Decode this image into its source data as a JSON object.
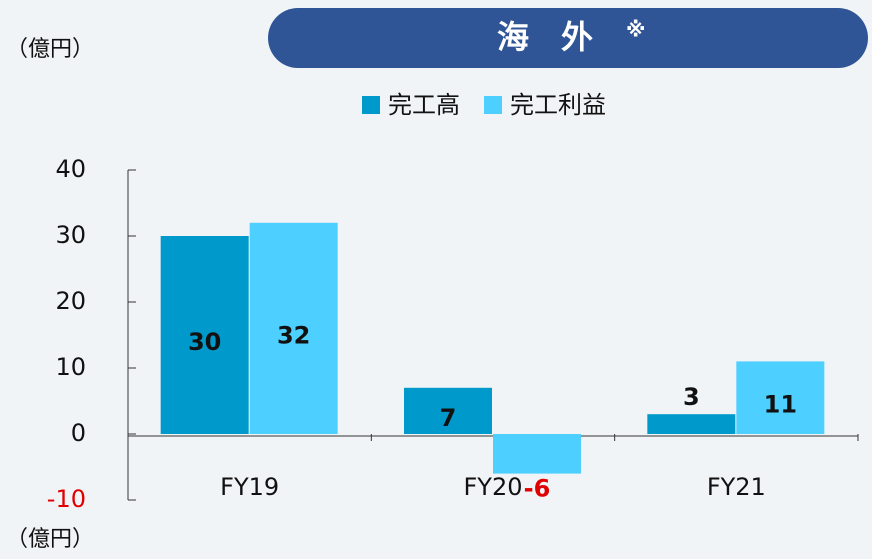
{
  "chart_data": {
    "type": "bar",
    "title": "海　外",
    "title_note": "※",
    "y_unit_top": "（億円）",
    "y_unit_bottom": "（億円）",
    "categories": [
      "FY19",
      "FY20",
      "FY21"
    ],
    "series": [
      {
        "name": "完工高",
        "color": "#0099cc",
        "values": [
          30,
          7,
          3
        ]
      },
      {
        "name": "完工利益",
        "color": "#4dcfff",
        "values": [
          32,
          -6,
          11
        ]
      }
    ],
    "negative_color": "#e00000",
    "ylim": [
      -10,
      40
    ],
    "yticks": [
      -10,
      0,
      10,
      20,
      30,
      40
    ]
  }
}
